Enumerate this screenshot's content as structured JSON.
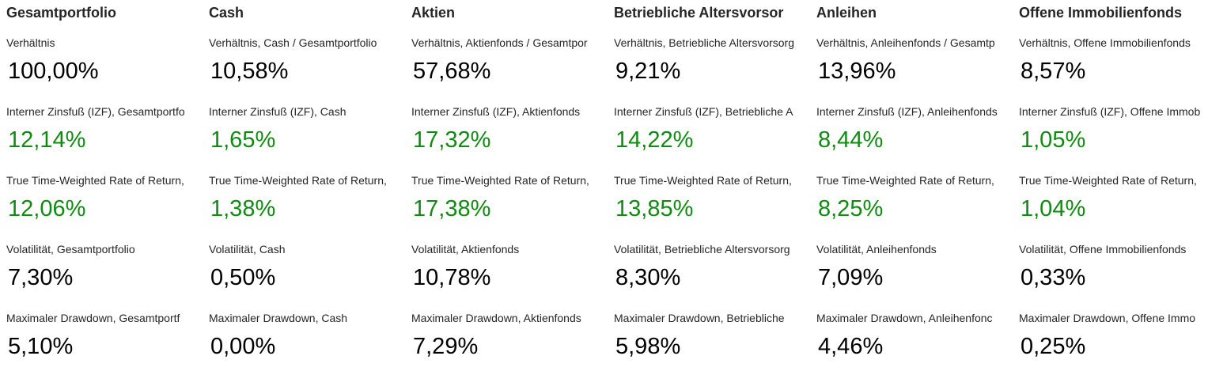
{
  "colors": {
    "title": "#252525",
    "label": "#252525",
    "value": "#000000",
    "positive_return": "#118a11"
  },
  "columns": [
    {
      "title": "Gesamtportfolio",
      "metrics": [
        {
          "label": "Verhältnis",
          "value": "100,00%",
          "tone": "neutral"
        },
        {
          "label": "Interner Zinsfuß (IZF), Gesamtportfo",
          "value": "12,14%",
          "tone": "positive"
        },
        {
          "label": "True Time-Weighted Rate of Return,",
          "value": "12,06%",
          "tone": "positive"
        },
        {
          "label": "Volatilität, Gesamtportfolio",
          "value": "7,30%",
          "tone": "neutral"
        },
        {
          "label": "Maximaler Drawdown, Gesamtportf",
          "value": "5,10%",
          "tone": "neutral"
        }
      ]
    },
    {
      "title": "Cash",
      "metrics": [
        {
          "label": "Verhältnis, Cash / Gesamtportfolio",
          "value": "10,58%",
          "tone": "neutral"
        },
        {
          "label": "Interner Zinsfuß (IZF), Cash",
          "value": "1,65%",
          "tone": "positive"
        },
        {
          "label": "True Time-Weighted Rate of Return,",
          "value": "1,38%",
          "tone": "positive"
        },
        {
          "label": "Volatilität, Cash",
          "value": "0,50%",
          "tone": "neutral"
        },
        {
          "label": "Maximaler Drawdown, Cash",
          "value": "0,00%",
          "tone": "neutral"
        }
      ]
    },
    {
      "title": "Aktien",
      "metrics": [
        {
          "label": "Verhältnis, Aktienfonds / Gesamtpor",
          "value": "57,68%",
          "tone": "neutral"
        },
        {
          "label": "Interner Zinsfuß (IZF), Aktienfonds",
          "value": "17,32%",
          "tone": "positive"
        },
        {
          "label": "True Time-Weighted Rate of Return,",
          "value": "17,38%",
          "tone": "positive"
        },
        {
          "label": "Volatilität, Aktienfonds",
          "value": "10,78%",
          "tone": "neutral"
        },
        {
          "label": "Maximaler Drawdown, Aktienfonds",
          "value": "7,29%",
          "tone": "neutral"
        }
      ]
    },
    {
      "title": "Betriebliche Altersvorsor",
      "metrics": [
        {
          "label": "Verhältnis, Betriebliche Altersvorsorg",
          "value": "9,21%",
          "tone": "neutral"
        },
        {
          "label": "Interner Zinsfuß (IZF), Betriebliche A",
          "value": "14,22%",
          "tone": "positive"
        },
        {
          "label": "True Time-Weighted Rate of Return,",
          "value": "13,85%",
          "tone": "positive"
        },
        {
          "label": "Volatilität, Betriebliche Altersvorsorg",
          "value": "8,30%",
          "tone": "neutral"
        },
        {
          "label": "Maximaler Drawdown, Betriebliche",
          "value": "5,98%",
          "tone": "neutral"
        }
      ]
    },
    {
      "title": "Anleihen",
      "metrics": [
        {
          "label": "Verhältnis, Anleihenfonds / Gesamtp",
          "value": "13,96%",
          "tone": "neutral"
        },
        {
          "label": "Interner Zinsfuß (IZF), Anleihenfonds",
          "value": "8,44%",
          "tone": "positive"
        },
        {
          "label": "True Time-Weighted Rate of Return,",
          "value": "8,25%",
          "tone": "positive"
        },
        {
          "label": "Volatilität, Anleihenfonds",
          "value": "7,09%",
          "tone": "neutral"
        },
        {
          "label": "Maximaler Drawdown, Anleihenfonc",
          "value": "4,46%",
          "tone": "neutral"
        }
      ]
    },
    {
      "title": "Offene Immobilienfonds",
      "metrics": [
        {
          "label": "Verhältnis, Offene Immobilienfonds",
          "value": "8,57%",
          "tone": "neutral"
        },
        {
          "label": "Interner Zinsfuß (IZF), Offene Immob",
          "value": "1,05%",
          "tone": "positive"
        },
        {
          "label": "True Time-Weighted Rate of Return,",
          "value": "1,04%",
          "tone": "positive"
        },
        {
          "label": "Volatilität, Offene Immobilienfonds",
          "value": "0,33%",
          "tone": "neutral"
        },
        {
          "label": "Maximaler Drawdown, Offene Immo",
          "value": "0,25%",
          "tone": "neutral"
        }
      ]
    }
  ]
}
